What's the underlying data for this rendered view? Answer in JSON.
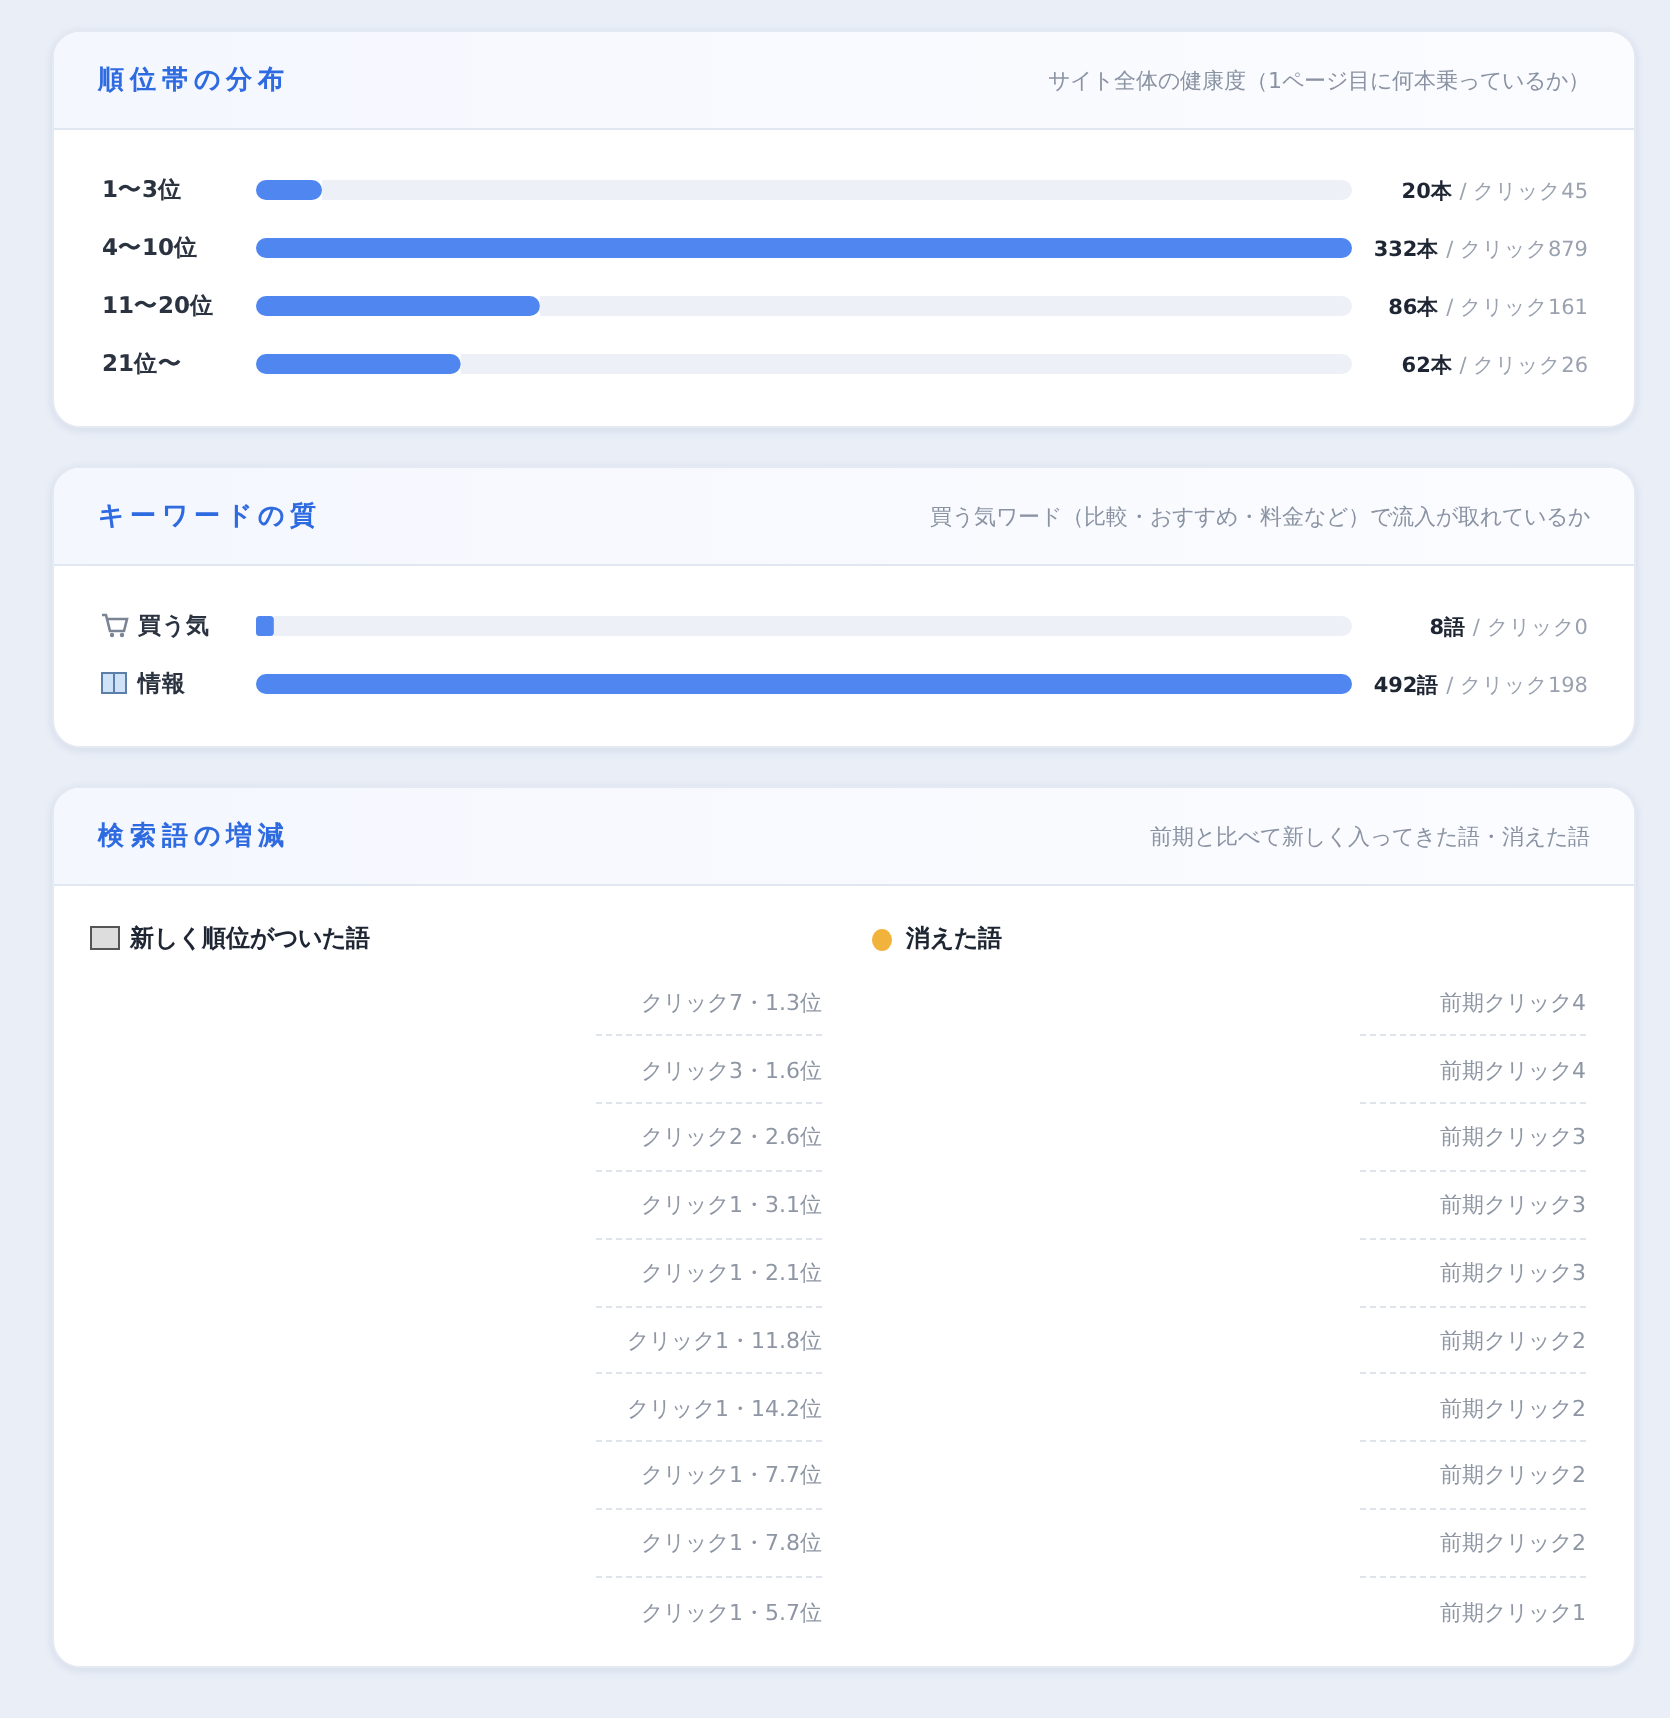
{
  "chart_data": [
    {
      "type": "bar",
      "orientation": "horizontal",
      "title": "順位帯の分布",
      "subtitle": "サイト全体の健康度（1ページ目に何本乗っているか）",
      "categories": [
        "1〜3位",
        "4〜10位",
        "11〜20位",
        "21位〜"
      ],
      "values": [
        20,
        332,
        86,
        62
      ],
      "value_labels": [
        "20本 / クリック45",
        "332本 / クリック879",
        "86本 / クリック161",
        "62本 / クリック26"
      ],
      "color": "#4f86f0"
    },
    {
      "type": "bar",
      "orientation": "horizontal",
      "title": "キーワードの質",
      "subtitle": "買う気ワード（比較・おすすめ・料金など）で流入が取れているか",
      "categories": [
        "買う気",
        "情報"
      ],
      "values": [
        8,
        492
      ],
      "value_labels": [
        "8語 / クリック0",
        "492語 / クリック198"
      ],
      "color": "#4f86f0"
    },
    {
      "type": "other",
      "title": "検索語の増減",
      "subtitle": "前期と比べて新しく入ってきた語・消えた語",
      "annotations": [
        "新しく順位がついた語",
        "クリック7・1.3位",
        "クリック3・1.6位",
        "クリック2・2.6位",
        "クリック1・3.1位",
        "クリック1・2.1位",
        "クリック1・11.8位",
        "クリック1・14.2位",
        "クリック1・7.7位",
        "クリック1・7.8位",
        "クリック1・5.7位",
        "消えた語",
        "前期クリック4",
        "前期クリック4",
        "前期クリック3",
        "前期クリック3",
        "前期クリック3",
        "前期クリック2",
        "前期クリック2",
        "前期クリック2",
        "前期クリック2",
        "前期クリック1"
      ]
    }
  ]
}
